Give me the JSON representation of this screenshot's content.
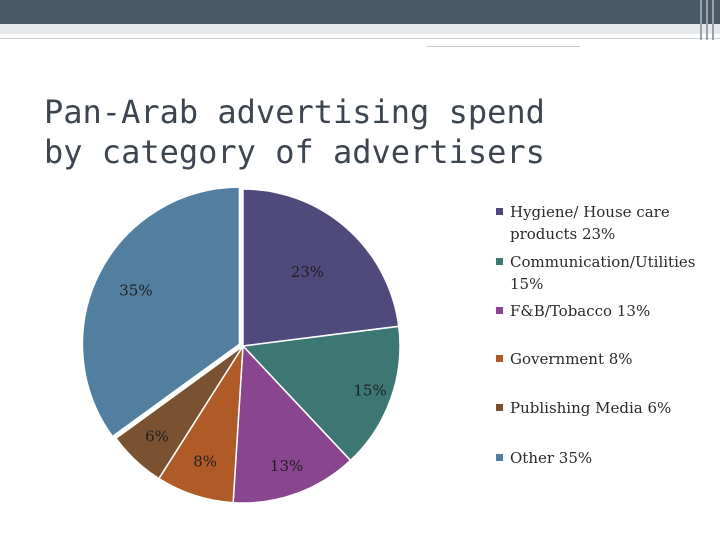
{
  "slide": {
    "title": "Pan-Arab advertising spend by category of advertisers"
  },
  "chart_data": {
    "type": "pie",
    "title": "",
    "categories": [
      "Hygiene/ House care products",
      "Communication/Utilities",
      "F&B/Tobacco",
      "Government",
      "Publishing Media",
      "Other"
    ],
    "values": [
      23,
      15,
      13,
      8,
      6,
      35
    ],
    "data_labels": [
      "23%",
      "15%",
      "13%",
      "8%",
      "6%",
      "35%"
    ],
    "legend_labels": [
      "Hygiene/ House care products 23%",
      "Communication/Utilities 15%",
      "F&B/Tobacco 13%",
      "Government 8%",
      "Publishing Media 6%",
      "Other 35%"
    ],
    "colors": [
      "#4f4a7b",
      "#3c7773",
      "#8a4590",
      "#b05a28",
      "#7a5232",
      "#527fa0"
    ],
    "exploded_slice": "Other",
    "legend_position": "right"
  }
}
